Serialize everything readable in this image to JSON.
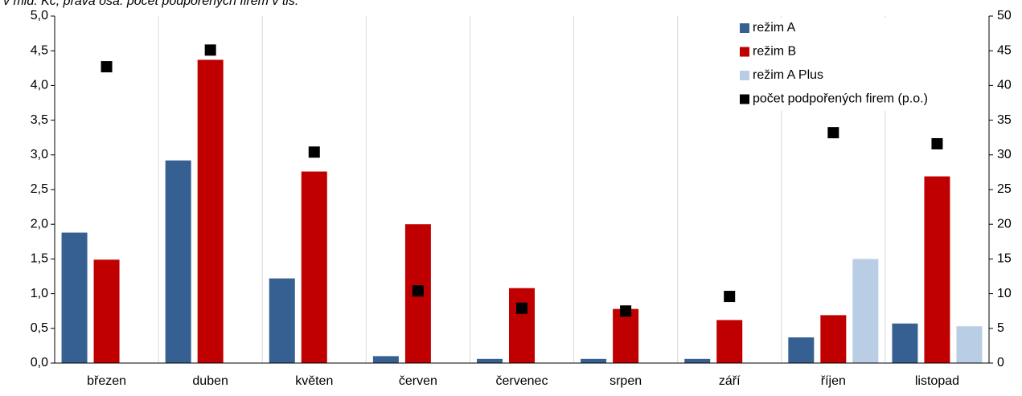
{
  "chart_data": {
    "type": "bar",
    "title": "v mld. Kč; pravá osa: počet podpořených firem v tis.",
    "categories": [
      "březen",
      "duben",
      "květen",
      "červen",
      "červenec",
      "srpen",
      "září",
      "říjen",
      "listopad"
    ],
    "series": [
      {
        "name": "režim A",
        "color": "#376092",
        "values": [
          1.88,
          2.92,
          1.22,
          0.1,
          0.06,
          0.06,
          0.06,
          0.37,
          0.57
        ]
      },
      {
        "name": "režim B",
        "color": "#c00000",
        "values": [
          1.49,
          4.37,
          2.76,
          2.0,
          1.08,
          0.78,
          0.62,
          0.69,
          2.69
        ]
      },
      {
        "name": "režim A Plus",
        "color": "#b9cde5",
        "values": [
          null,
          null,
          null,
          null,
          null,
          null,
          null,
          1.5,
          0.53
        ]
      },
      {
        "name": "počet podpořených firem (p.o.)",
        "color": "#000000",
        "axis": "y2",
        "marker": "square",
        "values": [
          42.7,
          45.1,
          30.4,
          10.4,
          7.9,
          7.5,
          9.6,
          33.2,
          31.6
        ]
      }
    ],
    "ylim": [
      0,
      5
    ],
    "yticks": [
      {
        "value": 0,
        "label": "0,0"
      },
      {
        "value": 0.5,
        "label": "0,5"
      },
      {
        "value": 1,
        "label": "1,0"
      },
      {
        "value": 1.5,
        "label": "1,5"
      },
      {
        "value": 2,
        "label": "2,0"
      },
      {
        "value": 2.5,
        "label": "2,5"
      },
      {
        "value": 3,
        "label": "3,0"
      },
      {
        "value": 3.5,
        "label": "3,5"
      },
      {
        "value": 4,
        "label": "4,0"
      },
      {
        "value": 4.5,
        "label": "4,5"
      },
      {
        "value": 5,
        "label": "5,0"
      }
    ],
    "y2lim": [
      0,
      50
    ],
    "y2ticks": [
      0,
      5,
      10,
      15,
      20,
      25,
      30,
      35,
      40,
      45,
      50
    ],
    "grid": "x",
    "legend": "upper right"
  }
}
